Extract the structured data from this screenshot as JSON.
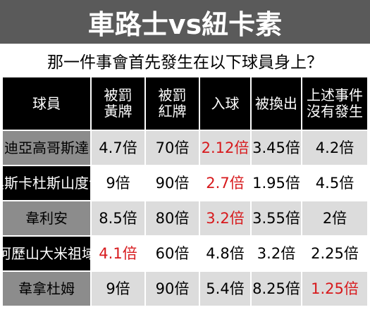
{
  "header": {
    "title": "車路士vs紐卡素",
    "question": "那一件事會首先發生在以下球員身上？"
  },
  "table": {
    "columns": [
      [
        "球員"
      ],
      [
        "被罰",
        "黃牌"
      ],
      [
        "被罰",
        "紅牌"
      ],
      [
        "入球"
      ],
      [
        "被換出"
      ],
      [
        "上述事件",
        "沒有發生"
      ]
    ],
    "rows": [
      {
        "player": "迪亞高哥斯達",
        "cells": [
          {
            "text": "4.7倍",
            "color": "#000000"
          },
          {
            "text": "70倍",
            "color": "#000000"
          },
          {
            "text": "2.12倍",
            "color": "#d7191c"
          },
          {
            "text": "3.45倍",
            "color": "#000000"
          },
          {
            "text": "4.2倍",
            "color": "#000000"
          }
        ]
      },
      {
        "player": "奧斯卡杜斯山度士",
        "cells": [
          {
            "text": "9倍",
            "color": "#000000"
          },
          {
            "text": "90倍",
            "color": "#000000"
          },
          {
            "text": "2.7倍",
            "color": "#d7191c"
          },
          {
            "text": "1.95倍",
            "color": "#000000"
          },
          {
            "text": "4.5倍",
            "color": "#000000"
          }
        ]
      },
      {
        "player": "韋利安",
        "cells": [
          {
            "text": "8.5倍",
            "color": "#000000"
          },
          {
            "text": "80倍",
            "color": "#000000"
          },
          {
            "text": "3.2倍",
            "color": "#d7191c"
          },
          {
            "text": "3.55倍",
            "color": "#000000"
          },
          {
            "text": "2倍",
            "color": "#000000"
          }
        ]
      },
      {
        "player": "阿歷山大米祖域",
        "cells": [
          {
            "text": "4.1倍",
            "color": "#d7191c"
          },
          {
            "text": "60倍",
            "color": "#000000"
          },
          {
            "text": "4.8倍",
            "color": "#000000"
          },
          {
            "text": "3.2倍",
            "color": "#000000"
          },
          {
            "text": "2.25倍",
            "color": "#000000"
          }
        ]
      },
      {
        "player": "韋拿杜姆",
        "cells": [
          {
            "text": "9倍",
            "color": "#000000"
          },
          {
            "text": "90倍",
            "color": "#000000"
          },
          {
            "text": "5.4倍",
            "color": "#000000"
          },
          {
            "text": "8.25倍",
            "color": "#000000"
          },
          {
            "text": "1.25倍",
            "color": "#d7191c"
          }
        ]
      }
    ]
  }
}
